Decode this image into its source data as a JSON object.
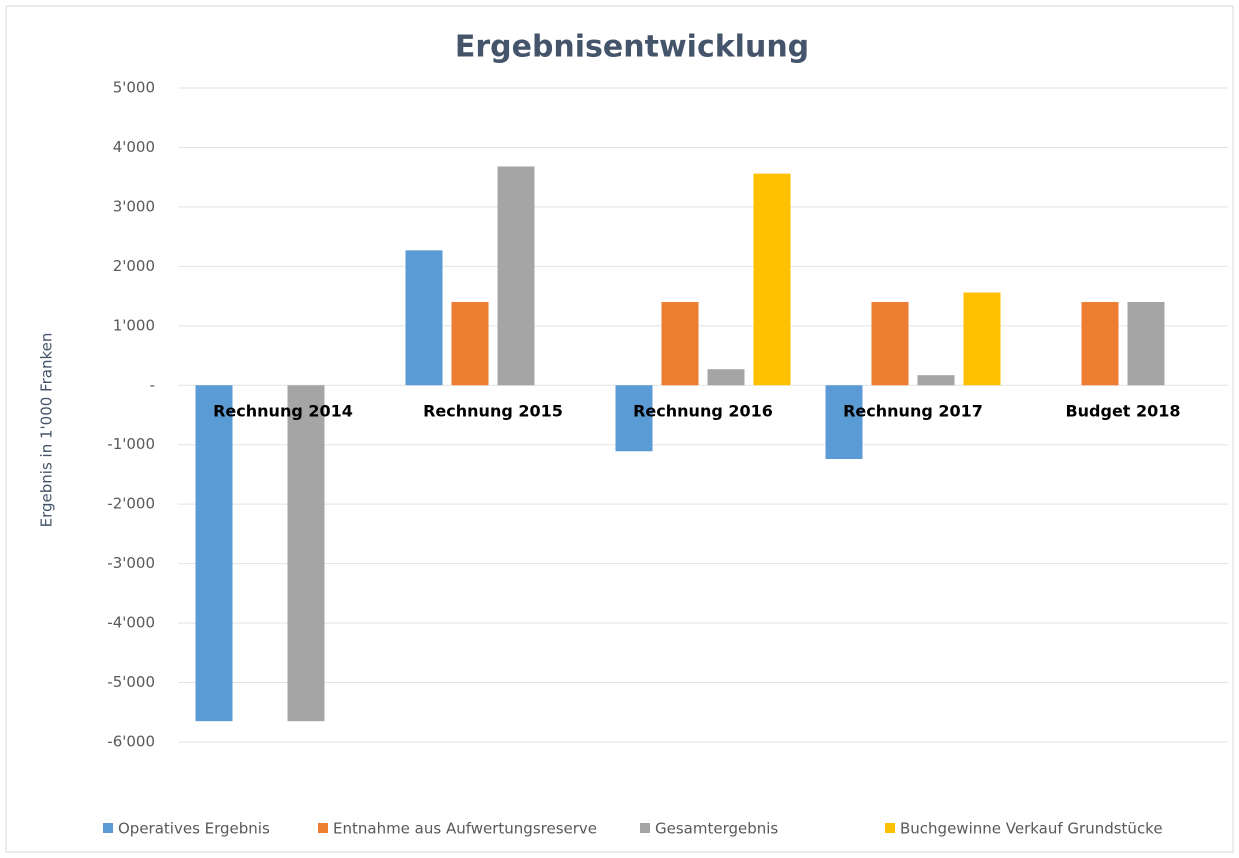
{
  "chart_data": {
    "type": "bar",
    "title": "Ergebnisentwicklung",
    "y_label": "Ergebnis in 1'000 Franken",
    "categories": [
      "Rechnung 2014",
      "Rechnung 2015",
      "Rechnung 2016",
      "Rechnung 2017",
      "Budget 2018"
    ],
    "series": [
      {
        "name": "Operatives Ergebnis",
        "color": "#5b9bd5",
        "values": [
          -5650,
          2270,
          -1110,
          -1240,
          null
        ]
      },
      {
        "name": "Entnahme aus Aufwertungsreserve",
        "color": "#ed7d31",
        "values": [
          null,
          1400,
          1400,
          1400,
          1400
        ]
      },
      {
        "name": "Gesamtergebnis",
        "color": "#a5a5a5",
        "values": [
          -5650,
          3680,
          270,
          170,
          1400
        ]
      },
      {
        "name": "Buchgewinne Verkauf Grundstücke",
        "color": "#ffc000",
        "values": [
          null,
          null,
          3560,
          1560,
          null
        ]
      }
    ],
    "ylim": [
      -6000,
      5000
    ],
    "yticks": [
      {
        "value": -6000,
        "label": "-6'000"
      },
      {
        "value": -5000,
        "label": "-5'000"
      },
      {
        "value": -4000,
        "label": "-4'000"
      },
      {
        "value": -3000,
        "label": "-3'000"
      },
      {
        "value": -2000,
        "label": "-2'000"
      },
      {
        "value": -1000,
        "label": "-1'000"
      },
      {
        "value": 0,
        "label": "-"
      },
      {
        "value": 1000,
        "label": "1'000"
      },
      {
        "value": 2000,
        "label": "2'000"
      },
      {
        "value": 3000,
        "label": "3'000"
      },
      {
        "value": 4000,
        "label": "4'000"
      },
      {
        "value": 5000,
        "label": "5'000"
      }
    ],
    "grid": true,
    "legend": "bottom"
  }
}
